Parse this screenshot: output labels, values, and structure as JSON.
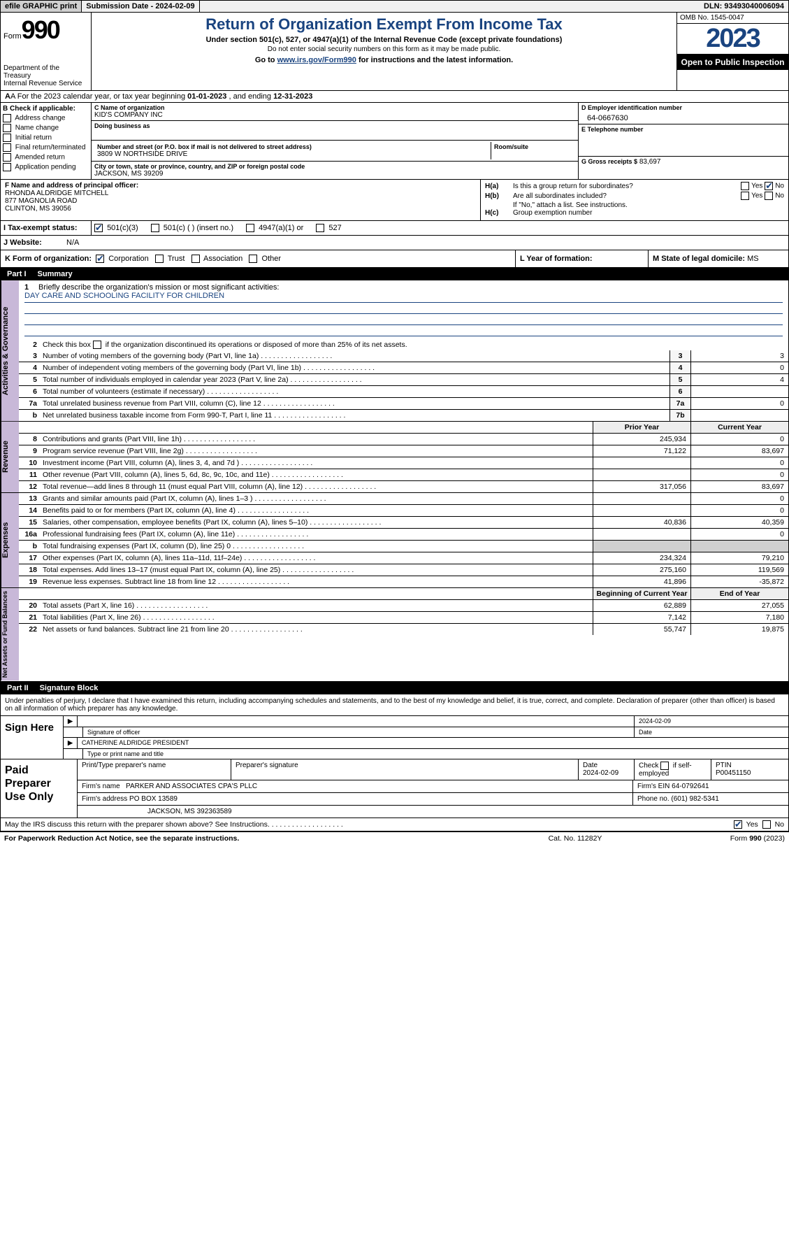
{
  "topbar": {
    "efile": "efile GRAPHIC print",
    "submission": "Submission Date - 2024-02-09",
    "dln": "DLN: 93493040006094"
  },
  "header": {
    "form_label": "Form",
    "form_num": "990",
    "dept": "Department of the Treasury\nInternal Revenue Service",
    "title": "Return of Organization Exempt From Income Tax",
    "sub1": "Under section 501(c), 527, or 4947(a)(1) of the Internal Revenue Code (except private foundations)",
    "sub2": "Do not enter social security numbers on this form as it may be made public.",
    "goto_pre": "Go to ",
    "goto_link": "www.irs.gov/Form990",
    "goto_post": " for instructions and the latest information.",
    "omb": "OMB No. 1545-0047",
    "year": "2023",
    "open": "Open to Public Inspection"
  },
  "line_a": {
    "pre": "A For the 2023 calendar year, or tax year beginning ",
    "begin": "01-01-2023",
    "mid": " , and ending ",
    "end": "12-31-2023"
  },
  "col_b": {
    "label": "B Check if applicable:",
    "items": [
      "Address change",
      "Name change",
      "Initial return",
      "Final return/terminated",
      "Amended return",
      "Application pending"
    ]
  },
  "col_c": {
    "name_lbl": "C Name of organization",
    "name": "KID'S COMPANY INC",
    "dba_lbl": "Doing business as",
    "dba": "",
    "addr_lbl": "Number and street (or P.O. box if mail is not delivered to street address)",
    "addr": "3809 W NORTHSIDE DRIVE",
    "room_lbl": "Room/suite",
    "room": "",
    "city_lbl": "City or town, state or province, country, and ZIP or foreign postal code",
    "city": "JACKSON, MS  39209"
  },
  "col_d": {
    "lbl": "D Employer identification number",
    "val": "64-0667630"
  },
  "col_e": {
    "lbl": "E Telephone number",
    "val": ""
  },
  "col_g": {
    "lbl": "G Gross receipts $",
    "val": "83,697"
  },
  "col_f": {
    "lbl": "F  Name and address of principal officer:",
    "name": "RHONDA ALDRIDGE MITCHELL",
    "addr1": "877 MAGNOLIA ROAD",
    "addr2": "CLINTON, MS  39056"
  },
  "col_h": {
    "a_lbl": "H(a)",
    "a_txt": "Is this a group return for subordinates?",
    "a_yes": "Yes",
    "a_no": "No",
    "b_lbl": "H(b)",
    "b_txt": "Are all subordinates included?",
    "b_yes": "Yes",
    "b_no": "No",
    "b_note": "If \"No,\" attach a list. See instructions.",
    "c_lbl": "H(c)",
    "c_txt": "Group exemption number"
  },
  "row_i": {
    "lbl": "I  Tax-exempt status:",
    "opts": [
      "501(c)(3)",
      "501(c) (  ) (insert no.)",
      "4947(a)(1) or",
      "527"
    ]
  },
  "row_j": {
    "lbl": "J  Website:",
    "val": "N/A"
  },
  "row_k": {
    "lbl": "K Form of organization:",
    "opts": [
      "Corporation",
      "Trust",
      "Association",
      "Other"
    ]
  },
  "row_l": {
    "lbl": "L Year of formation:",
    "val": ""
  },
  "row_m": {
    "lbl": "M State of legal domicile:",
    "val": "MS"
  },
  "part1": {
    "num": "Part I",
    "title": "Summary"
  },
  "vtabs": {
    "gov": "Activities & Governance",
    "rev": "Revenue",
    "exp": "Expenses",
    "net": "Net Assets or Fund Balances"
  },
  "gov": {
    "l1_num": "1",
    "l1": "Briefly describe the organization's mission or most significant activities:",
    "mission": "DAY CARE AND SCHOOLING FACILITY FOR CHILDREN",
    "l2_num": "2",
    "l2": "Check this box      if the organization discontinued its operations or disposed of more than 25% of its net assets.",
    "l3_num": "3",
    "l3": "Number of voting members of the governing body (Part VI, line 1a)",
    "l3_box": "3",
    "l3_val": "3",
    "l4_num": "4",
    "l4": "Number of independent voting members of the governing body (Part VI, line 1b)",
    "l4_box": "4",
    "l4_val": "0",
    "l5_num": "5",
    "l5": "Total number of individuals employed in calendar year 2023 (Part V, line 2a)",
    "l5_box": "5",
    "l5_val": "4",
    "l6_num": "6",
    "l6": "Total number of volunteers (estimate if necessary)",
    "l6_box": "6",
    "l6_val": "",
    "l7a_num": "7a",
    "l7a": "Total unrelated business revenue from Part VIII, column (C), line 12",
    "l7a_box": "7a",
    "l7a_val": "0",
    "l7b_num": "b",
    "l7b": "Net unrelated business taxable income from Form 990-T, Part I, line 11",
    "l7b_box": "7b",
    "l7b_val": ""
  },
  "revhdr": {
    "prior": "Prior Year",
    "current": "Current Year"
  },
  "rev": [
    {
      "num": "8",
      "txt": "Contributions and grants (Part VIII, line 1h)",
      "p": "245,934",
      "c": "0"
    },
    {
      "num": "9",
      "txt": "Program service revenue (Part VIII, line 2g)",
      "p": "71,122",
      "c": "83,697"
    },
    {
      "num": "10",
      "txt": "Investment income (Part VIII, column (A), lines 3, 4, and 7d )",
      "p": "",
      "c": "0"
    },
    {
      "num": "11",
      "txt": "Other revenue (Part VIII, column (A), lines 5, 6d, 8c, 9c, 10c, and 11e)",
      "p": "",
      "c": "0"
    },
    {
      "num": "12",
      "txt": "Total revenue—add lines 8 through 11 (must equal Part VIII, column (A), line 12)",
      "p": "317,056",
      "c": "83,697"
    }
  ],
  "exp": [
    {
      "num": "13",
      "txt": "Grants and similar amounts paid (Part IX, column (A), lines 1–3 )",
      "p": "",
      "c": "0"
    },
    {
      "num": "14",
      "txt": "Benefits paid to or for members (Part IX, column (A), line 4)",
      "p": "",
      "c": "0"
    },
    {
      "num": "15",
      "txt": "Salaries, other compensation, employee benefits (Part IX, column (A), lines 5–10)",
      "p": "40,836",
      "c": "40,359"
    },
    {
      "num": "16a",
      "txt": "Professional fundraising fees (Part IX, column (A), line 11e)",
      "p": "",
      "c": "0"
    },
    {
      "num": "b",
      "txt": "Total fundraising expenses (Part IX, column (D), line 25) 0",
      "p": "GREY",
      "c": "GREY"
    },
    {
      "num": "17",
      "txt": "Other expenses (Part IX, column (A), lines 11a–11d, 11f–24e)",
      "p": "234,324",
      "c": "79,210"
    },
    {
      "num": "18",
      "txt": "Total expenses. Add lines 13–17 (must equal Part IX, column (A), line 25)",
      "p": "275,160",
      "c": "119,569"
    },
    {
      "num": "19",
      "txt": "Revenue less expenses. Subtract line 18 from line 12",
      "p": "41,896",
      "c": "-35,872"
    }
  ],
  "nethdr": {
    "begin": "Beginning of Current Year",
    "end": "End of Year"
  },
  "net": [
    {
      "num": "20",
      "txt": "Total assets (Part X, line 16)",
      "p": "62,889",
      "c": "27,055"
    },
    {
      "num": "21",
      "txt": "Total liabilities (Part X, line 26)",
      "p": "7,142",
      "c": "7,180"
    },
    {
      "num": "22",
      "txt": "Net assets or fund balances. Subtract line 21 from line 20",
      "p": "55,747",
      "c": "19,875"
    }
  ],
  "part2": {
    "num": "Part II",
    "title": "Signature Block"
  },
  "decl": "Under penalties of perjury, I declare that I have examined this return, including accompanying schedules and statements, and to the best of my knowledge and belief, it is true, correct, and complete. Declaration of preparer (other than officer) is based on all information of which preparer has any knowledge.",
  "sign": {
    "here": "Sign Here",
    "date": "2024-02-09",
    "sig_lbl": "Signature of officer",
    "date_lbl": "Date",
    "name": "CATHERINE ALDRIDGE PRESIDENT",
    "name_lbl": "Type or print name and title"
  },
  "prep": {
    "title": "Paid Preparer Use Only",
    "h1": "Print/Type preparer's name",
    "h2": "Preparer's signature",
    "h3": "Date",
    "h3v": "2024-02-09",
    "h4": "Check       if self-employed",
    "h5": "PTIN",
    "h5v": "P00451150",
    "firm_lbl": "Firm's name",
    "firm": "PARKER AND ASSOCIATES CPA'S PLLC",
    "ein_lbl": "Firm's EIN",
    "ein": "64-0792641",
    "addr_lbl": "Firm's address",
    "addr1": "PO BOX 13589",
    "addr2": "JACKSON, MS  392363589",
    "phone_lbl": "Phone no.",
    "phone": "(601) 982-5341"
  },
  "may": {
    "txt": "May the IRS discuss this return with the preparer shown above? See Instructions.",
    "yes": "Yes",
    "no": "No"
  },
  "footer": {
    "l": "For Paperwork Reduction Act Notice, see the separate instructions.",
    "m": "Cat. No. 11282Y",
    "r": "Form 990 (2023)"
  }
}
